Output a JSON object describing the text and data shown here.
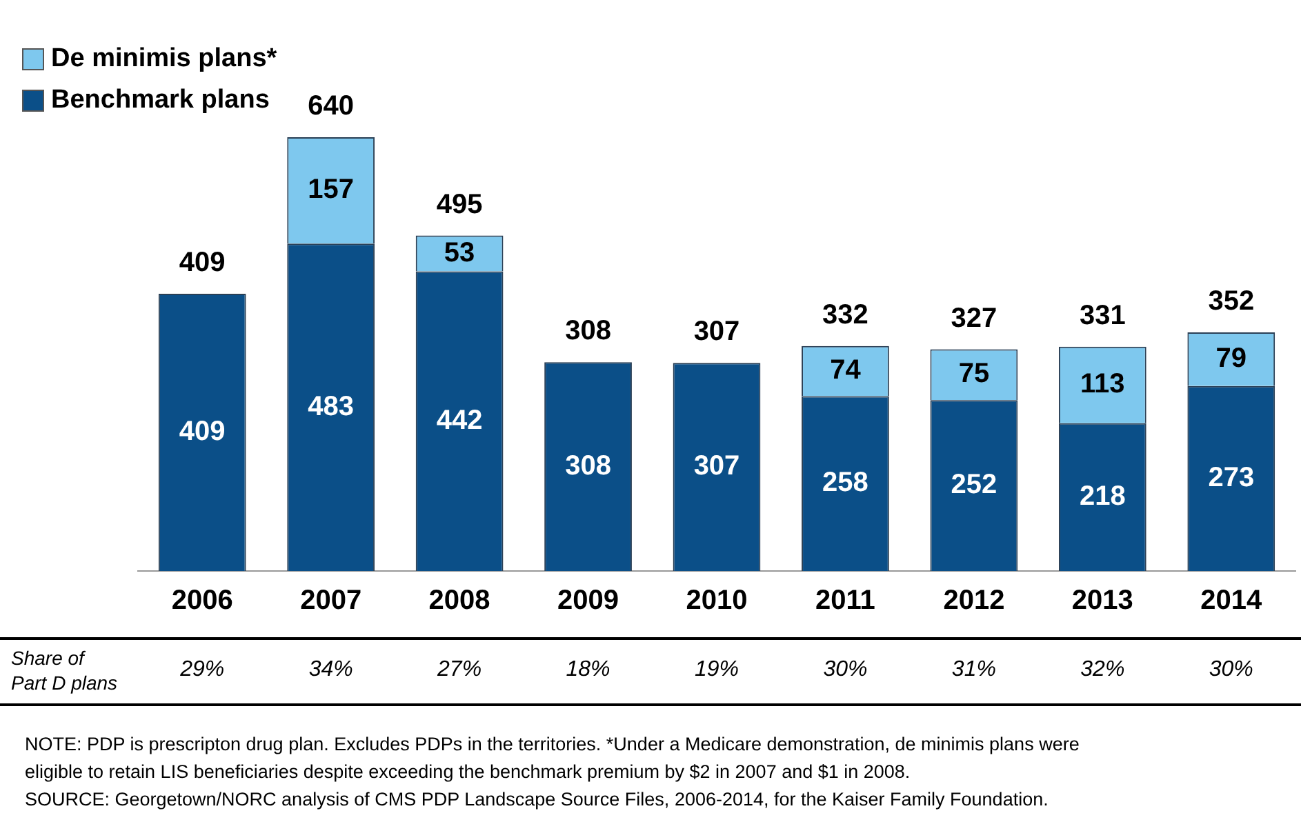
{
  "chart_data": {
    "type": "bar",
    "stacked": true,
    "data_labels": true,
    "grid": false,
    "legend": "top left",
    "categories": [
      "2006",
      "2007",
      "2008",
      "2009",
      "2010",
      "2011",
      "2012",
      "2013",
      "2014"
    ],
    "series": [
      {
        "name": "Benchmark plans",
        "color": "#0b4f88",
        "values": [
          409,
          483,
          442,
          308,
          307,
          258,
          252,
          218,
          273
        ]
      },
      {
        "name": "De minimis plans*",
        "color": "#7ec8ee",
        "values": [
          null,
          157,
          53,
          null,
          null,
          74,
          75,
          113,
          79
        ]
      }
    ],
    "totals": [
      "409",
      "640",
      "495",
      "308",
      "307",
      "332",
      "327",
      "331",
      "352"
    ],
    "annotations": [
      "Share of Part D plans",
      "29%",
      "34%",
      "27%",
      "18%",
      "19%",
      "30%",
      "31%",
      "32%",
      "30%",
      "NOTE: PDP is prescripton drug plan. Excludes PDPs in the territories. *Under a Medicare demonstration, de minimis plans were eligible to retain LIS beneficiaries despite exceeding the benchmark premium by $2 in 2007 and $1 in 2008.",
      "SOURCE: Georgetown/NORC analysis of CMS PDP Landscape Source Files, 2006-2014, for the Kaiser Family Foundation."
    ]
  }
}
